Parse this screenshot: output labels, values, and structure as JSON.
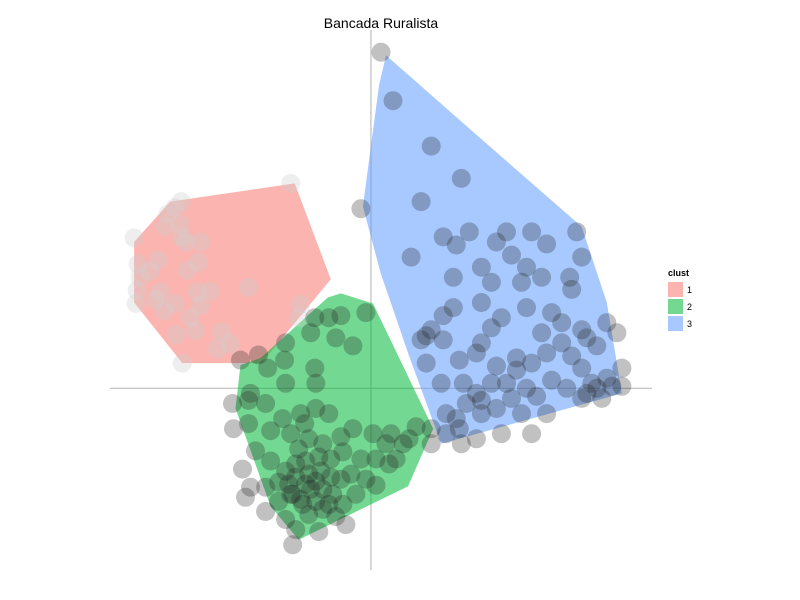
{
  "chart_data": {
    "type": "scatter",
    "title": "Bancada Ruralista",
    "xlabel": "",
    "ylabel": "",
    "xlim": [
      -2.6,
      2.8
    ],
    "ylim": [
      -1.8,
      3.55
    ],
    "axis_lines": true,
    "grid": false,
    "legend": {
      "title": "clust",
      "placement": "right",
      "entries": [
        {
          "label": "1",
          "color": "#F8766D"
        },
        {
          "label": "2",
          "color": "#00BA38"
        },
        {
          "label": "3",
          "color": "#619CFF"
        }
      ]
    },
    "hulls": [
      {
        "cluster": "1",
        "color": "#F8766D",
        "points": [
          [
            -2.36,
            1.45
          ],
          [
            -2.0,
            1.85
          ],
          [
            -0.76,
            2.03
          ],
          [
            -0.4,
            1.08
          ],
          [
            -1.09,
            0.25
          ],
          [
            -1.88,
            0.25
          ],
          [
            -2.36,
            0.85
          ]
        ]
      },
      {
        "cluster": "2",
        "color": "#00BA38",
        "points": [
          [
            -1.1,
            0.3
          ],
          [
            -0.43,
            0.9
          ],
          [
            -0.3,
            0.94
          ],
          [
            0.02,
            0.84
          ],
          [
            0.62,
            -0.4
          ],
          [
            0.37,
            -0.97
          ],
          [
            -0.72,
            -1.5
          ],
          [
            -1.0,
            -1.17
          ],
          [
            -1.35,
            -0.2
          ],
          [
            -1.3,
            0.23
          ]
        ]
      },
      {
        "cluster": "3",
        "color": "#619CFF",
        "points": [
          [
            0.15,
            3.3
          ],
          [
            0.08,
            3.0
          ],
          [
            -0.08,
            1.8
          ],
          [
            0.1,
            1.13
          ],
          [
            0.38,
            0.32
          ],
          [
            0.7,
            -0.55
          ],
          [
            2.5,
            -0.05
          ],
          [
            2.35,
            0.85
          ],
          [
            2.1,
            1.6
          ],
          [
            0.95,
            2.6
          ]
        ]
      }
    ],
    "points": {
      "cluster1": [
        [
          -2.36,
          1.49
        ],
        [
          -2.32,
          1.23
        ],
        [
          -2.3,
          1.1
        ],
        [
          -2.33,
          0.97
        ],
        [
          -2.34,
          0.84
        ],
        [
          -2.2,
          1.16
        ],
        [
          -2.12,
          1.27
        ],
        [
          -2.05,
          1.6
        ],
        [
          -2.02,
          1.73
        ],
        [
          -1.95,
          1.79
        ],
        [
          -1.89,
          1.85
        ],
        [
          -1.9,
          1.62
        ],
        [
          -1.88,
          1.5
        ],
        [
          -1.85,
          1.45
        ],
        [
          -1.7,
          1.45
        ],
        [
          -1.72,
          1.25
        ],
        [
          -1.83,
          1.17
        ],
        [
          -2.15,
          0.88
        ],
        [
          -2.06,
          0.77
        ],
        [
          -1.95,
          0.84
        ],
        [
          -1.73,
          0.95
        ],
        [
          -1.8,
          0.7
        ],
        [
          -2.1,
          0.95
        ],
        [
          -1.49,
          0.56
        ],
        [
          -1.94,
          0.53
        ],
        [
          -1.75,
          0.57
        ],
        [
          -1.4,
          0.44
        ],
        [
          -1.53,
          0.39
        ],
        [
          -1.7,
          0.82
        ],
        [
          -1.88,
          0.25
        ],
        [
          -1.22,
          1.0
        ],
        [
          -1.6,
          0.96
        ],
        [
          -0.8,
          2.03
        ],
        [
          -0.7,
          0.83
        ],
        [
          -0.72,
          0.7
        ]
      ],
      "cluster2": [
        [
          -1.3,
          0.28
        ],
        [
          -1.12,
          0.33
        ],
        [
          -1.03,
          0.2
        ],
        [
          -0.86,
          0.28
        ],
        [
          -0.56,
          0.2
        ],
        [
          -0.55,
          0.05
        ],
        [
          -0.85,
          0.05
        ],
        [
          -1.2,
          -0.05
        ],
        [
          -1.38,
          -0.15
        ],
        [
          -1.22,
          -0.12
        ],
        [
          -1.05,
          -0.15
        ],
        [
          -0.88,
          -0.3
        ],
        [
          -0.7,
          -0.25
        ],
        [
          -0.55,
          -0.2
        ],
        [
          -0.42,
          -0.25
        ],
        [
          -1.37,
          -0.4
        ],
        [
          -1.22,
          -0.35
        ],
        [
          -1.0,
          -0.42
        ],
        [
          -0.8,
          -0.45
        ],
        [
          -0.66,
          -0.35
        ],
        [
          -0.62,
          -0.5
        ],
        [
          -0.48,
          -0.55
        ],
        [
          -0.3,
          -0.48
        ],
        [
          -0.18,
          -0.4
        ],
        [
          0.02,
          -0.45
        ],
        [
          0.2,
          -0.45
        ],
        [
          0.38,
          -0.5
        ],
        [
          0.45,
          -0.38
        ],
        [
          0.6,
          -0.4
        ],
        [
          -1.28,
          -0.8
        ],
        [
          -1.15,
          -0.62
        ],
        [
          -1.0,
          -0.72
        ],
        [
          -0.85,
          -0.82
        ],
        [
          -0.75,
          -0.75
        ],
        [
          -0.65,
          -0.72
        ],
        [
          -0.52,
          -0.68
        ],
        [
          -0.4,
          -0.7
        ],
        [
          -0.28,
          -0.63
        ],
        [
          -0.1,
          -0.7
        ],
        [
          0.05,
          -0.7
        ],
        [
          0.15,
          -0.55
        ],
        [
          0.25,
          -0.7
        ],
        [
          0.32,
          -0.55
        ],
        [
          -1.2,
          -0.98
        ],
        [
          -1.05,
          -0.98
        ],
        [
          -0.92,
          -0.93
        ],
        [
          -0.75,
          -0.88
        ],
        [
          -0.62,
          -0.85
        ],
        [
          -0.5,
          -0.82
        ],
        [
          -0.4,
          -0.88
        ],
        [
          -0.3,
          -0.9
        ],
        [
          -0.2,
          -0.85
        ],
        [
          -0.05,
          -0.9
        ],
        [
          0.05,
          -0.96
        ],
        [
          0.18,
          -0.75
        ],
        [
          -1.25,
          -1.08
        ],
        [
          -1.05,
          -1.22
        ],
        [
          -0.92,
          -1.12
        ],
        [
          -0.8,
          -1.05
        ],
        [
          -0.7,
          -1.1
        ],
        [
          -0.6,
          -1.0
        ],
        [
          -0.48,
          -1.0
        ],
        [
          -0.38,
          -1.05
        ],
        [
          -0.28,
          -1.15
        ],
        [
          -0.15,
          -1.05
        ],
        [
          -0.85,
          -1.3
        ],
        [
          -0.75,
          -1.4
        ],
        [
          -0.62,
          -1.25
        ],
        [
          -0.48,
          -1.2
        ],
        [
          -0.35,
          -1.27
        ],
        [
          -0.78,
          -1.55
        ],
        [
          -0.52,
          -1.42
        ],
        [
          -0.25,
          -1.35
        ],
        [
          -0.78,
          -1.05
        ],
        [
          -0.68,
          -1.15
        ],
        [
          -0.55,
          -1.12
        ],
        [
          -0.42,
          -1.15
        ],
        [
          -0.65,
          -0.95
        ],
        [
          -0.55,
          -0.92
        ],
        [
          -0.82,
          -0.95
        ],
        [
          -0.18,
          0.42
        ],
        [
          -0.42,
          0.7
        ],
        [
          -0.56,
          0.7
        ],
        [
          -0.35,
          0.5
        ],
        [
          -0.6,
          0.55
        ],
        [
          -0.85,
          0.45
        ],
        [
          -0.3,
          0.72
        ],
        [
          -0.05,
          0.75
        ],
        [
          -0.72,
          -0.6
        ]
      ],
      "cluster3": [
        [
          0.1,
          3.33
        ],
        [
          0.22,
          2.85
        ],
        [
          0.6,
          2.4
        ],
        [
          0.9,
          2.08
        ],
        [
          -0.1,
          1.78
        ],
        [
          0.5,
          1.85
        ],
        [
          0.98,
          1.55
        ],
        [
          1.35,
          1.55
        ],
        [
          1.6,
          1.55
        ],
        [
          1.75,
          1.43
        ],
        [
          2.05,
          1.55
        ],
        [
          0.4,
          1.3
        ],
        [
          0.72,
          1.5
        ],
        [
          0.82,
          1.1
        ],
        [
          1.1,
          1.2
        ],
        [
          1.4,
          1.32
        ],
        [
          1.55,
          1.2
        ],
        [
          1.7,
          1.1
        ],
        [
          1.98,
          1.1
        ],
        [
          2.1,
          1.3
        ],
        [
          0.82,
          0.8
        ],
        [
          1.1,
          0.85
        ],
        [
          1.3,
          0.7
        ],
        [
          0.55,
          0.52
        ],
        [
          1.2,
          0.6
        ],
        [
          1.55,
          0.8
        ],
        [
          1.7,
          0.55
        ],
        [
          2.0,
          0.98
        ],
        [
          1.1,
          0.45
        ],
        [
          0.5,
          0.48
        ],
        [
          0.72,
          0.48
        ],
        [
          0.55,
          0.25
        ],
        [
          0.88,
          0.28
        ],
        [
          1.05,
          0.35
        ],
        [
          1.25,
          0.22
        ],
        [
          1.45,
          0.3
        ],
        [
          0.7,
          0.05
        ],
        [
          0.92,
          0.05
        ],
        [
          1.2,
          0.05
        ],
        [
          1.35,
          0.05
        ],
        [
          1.45,
          0.18
        ],
        [
          1.6,
          0.25
        ],
        [
          1.75,
          0.35
        ],
        [
          1.9,
          0.45
        ],
        [
          2.0,
          0.32
        ],
        [
          2.1,
          0.2
        ],
        [
          2.2,
          0.05
        ],
        [
          2.3,
          -0.1
        ],
        [
          2.4,
          0.02
        ],
        [
          2.5,
          0.02
        ],
        [
          2.35,
          0.1
        ],
        [
          1.8,
          0.08
        ],
        [
          1.95,
          0.0
        ],
        [
          1.55,
          0.0
        ],
        [
          0.85,
          -0.3
        ],
        [
          0.95,
          -0.15
        ],
        [
          1.1,
          -0.25
        ],
        [
          1.25,
          -0.2
        ],
        [
          1.5,
          -0.25
        ],
        [
          1.75,
          -0.25
        ],
        [
          0.75,
          -0.45
        ],
        [
          0.9,
          -0.55
        ],
        [
          1.05,
          -0.5
        ],
        [
          1.3,
          -0.45
        ],
        [
          0.6,
          -0.55
        ],
        [
          0.75,
          -0.25
        ],
        [
          1.6,
          -0.45
        ],
        [
          1.05,
          -0.05
        ],
        [
          0.88,
          -0.4
        ],
        [
          1.1,
          -0.12
        ],
        [
          1.4,
          -0.1
        ],
        [
          1.65,
          -0.08
        ],
        [
          2.15,
          -0.05
        ],
        [
          2.25,
          0.0
        ],
        [
          2.5,
          0.2
        ],
        [
          2.45,
          0.55
        ],
        [
          2.35,
          0.65
        ],
        [
          2.1,
          0.58
        ],
        [
          1.9,
          0.65
        ],
        [
          0.6,
          0.58
        ],
        [
          0.72,
          0.72
        ],
        [
          0.85,
          1.42
        ],
        [
          1.2,
          1.05
        ],
        [
          1.25,
          1.45
        ],
        [
          1.5,
          1.05
        ],
        [
          1.8,
          0.75
        ],
        [
          2.15,
          0.5
        ],
        [
          2.25,
          0.42
        ],
        [
          2.1,
          -0.1
        ]
      ]
    }
  }
}
